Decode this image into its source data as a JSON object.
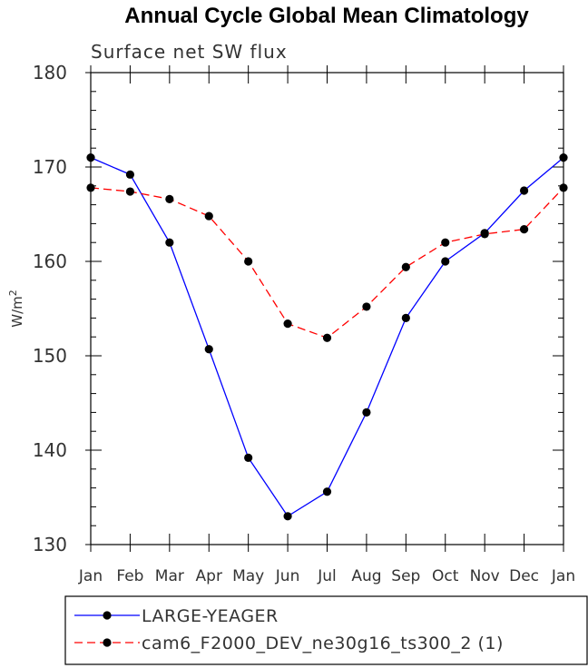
{
  "chart_data": {
    "type": "line",
    "title": "Annual Cycle Global Mean Climatology",
    "subtitle": "Surface net SW flux",
    "ylabel": "W/m",
    "ylabel_superscript": "2",
    "xlabel": "",
    "categories": [
      "Jan",
      "Feb",
      "Mar",
      "Apr",
      "May",
      "Jun",
      "Jul",
      "Aug",
      "Sep",
      "Oct",
      "Nov",
      "Dec",
      "Jan"
    ],
    "ylim": [
      130,
      180
    ],
    "yticks": [
      130,
      140,
      150,
      160,
      170,
      180
    ],
    "series": [
      {
        "name": "LARGE-YEAGER",
        "color": "#0000ff",
        "dashed": false,
        "values": [
          171.0,
          169.2,
          162.0,
          150.7,
          139.2,
          133.0,
          135.6,
          144.0,
          154.0,
          160.0,
          163.0,
          167.5,
          171.0
        ]
      },
      {
        "name": "cam6_F2000_DEV_ne30g16_ts300_2 (1)",
        "color": "#ff0000",
        "dashed": true,
        "values": [
          167.8,
          167.4,
          166.6,
          164.8,
          160.0,
          153.4,
          151.9,
          155.2,
          159.4,
          162.0,
          162.9,
          163.4,
          167.8
        ]
      }
    ],
    "grid": false,
    "legend_position": "bottom"
  }
}
